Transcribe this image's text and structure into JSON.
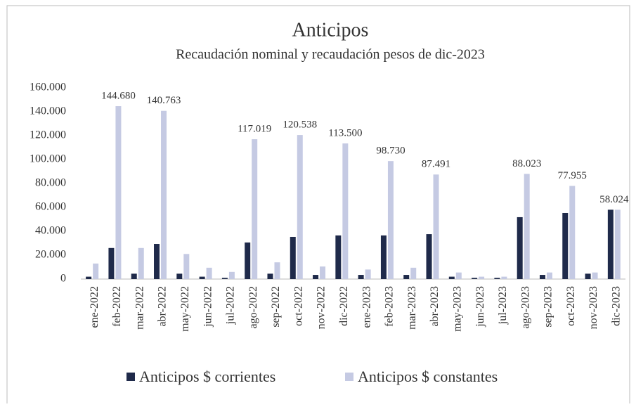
{
  "chart_data": {
    "type": "bar",
    "title": "Anticipos",
    "subtitle": "Recaudación nominal y recaudación pesos de dic-2023",
    "categories": [
      "ene-2022",
      "feb-2022",
      "mar-2022",
      "abr-2022",
      "may-2022",
      "jun-2022",
      "jul-2022",
      "ago-2022",
      "sep-2022",
      "oct-2022",
      "nov-2022",
      "dic-2022",
      "ene-2023",
      "feb-2023",
      "mar-2023",
      "abr-2023",
      "may-2023",
      "jun-2023",
      "jul-2023",
      "ago-2023",
      "sep-2023",
      "oct-2023",
      "nov-2023",
      "dic-2023"
    ],
    "series": [
      {
        "name": "Anticipos $ corrientes",
        "color": "#1f2a4a",
        "values": [
          2000,
          26000,
          4500,
          29400,
          4500,
          2000,
          1000,
          30600,
          4500,
          35300,
          3500,
          36500,
          3500,
          36500,
          3500,
          37600,
          2000,
          1000,
          1000,
          51800,
          3500,
          55300,
          4500,
          58024
        ],
        "value_labels": [
          null,
          null,
          null,
          null,
          null,
          null,
          null,
          null,
          null,
          null,
          null,
          null,
          null,
          null,
          null,
          null,
          null,
          null,
          null,
          null,
          null,
          null,
          null,
          "58.024"
        ]
      },
      {
        "name": "Anticipos $ constantes",
        "color": "#c5cae3",
        "values": [
          13000,
          144680,
          26000,
          140763,
          21000,
          9500,
          6000,
          117019,
          14000,
          120538,
          10500,
          113500,
          8000,
          98730,
          9500,
          87491,
          5500,
          2000,
          2000,
          88023,
          5500,
          77955,
          5500,
          58024
        ],
        "value_labels": [
          null,
          "144.680",
          null,
          "140.763",
          null,
          null,
          null,
          "117.019",
          null,
          "120.538",
          null,
          "113.500",
          null,
          "98.730",
          null,
          "87.491",
          null,
          null,
          null,
          "88.023",
          null,
          "77.955",
          null,
          null
        ]
      }
    ],
    "ylim": [
      0,
      160000
    ],
    "yticks": [
      0,
      {
        "value": 20000,
        "label": "20.000"
      },
      {
        "value": 40000,
        "label": "40.000"
      },
      {
        "value": 60000,
        "label": "60.000"
      },
      {
        "value": 80000,
        "label": "80.000"
      },
      {
        "value": 100000,
        "label": "100.000"
      },
      {
        "value": 120000,
        "label": "120.000"
      },
      {
        "value": 140000,
        "label": "140.000"
      },
      {
        "value": 160000,
        "label": "160.000"
      }
    ],
    "grid": false,
    "legend": "bottom"
  }
}
